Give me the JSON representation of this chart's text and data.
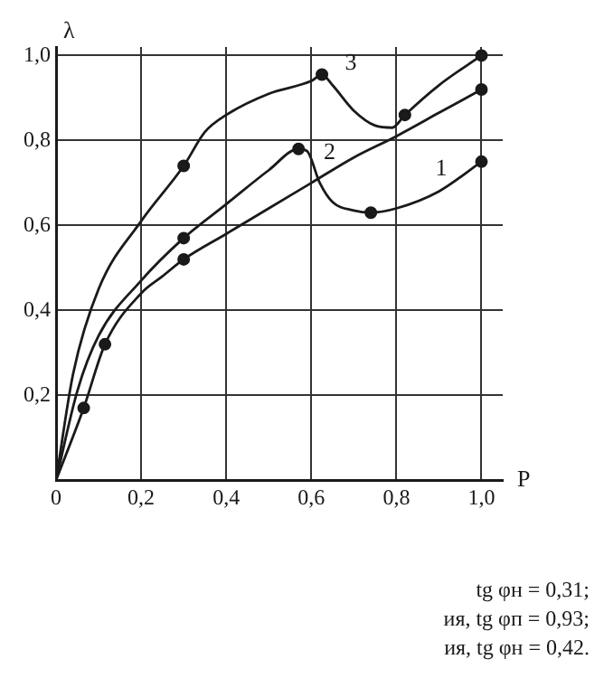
{
  "chart_data": {
    "type": "line",
    "xlabel": "P",
    "ylabel": "λ",
    "xlim": [
      0,
      1.05
    ],
    "ylim": [
      0,
      1.02
    ],
    "xticks": [
      {
        "value": 0,
        "label": "0"
      },
      {
        "value": 0.2,
        "label": "0,2"
      },
      {
        "value": 0.4,
        "label": "0,4"
      },
      {
        "value": 0.6,
        "label": "0,6"
      },
      {
        "value": 0.8,
        "label": "0,8"
      },
      {
        "value": 1.0,
        "label": "1,0"
      }
    ],
    "yticks": [
      {
        "value": 0,
        "label": null
      },
      {
        "value": 0.2,
        "label": "0,2"
      },
      {
        "value": 0.4,
        "label": "0,4"
      },
      {
        "value": 0.6,
        "label": "0,6"
      },
      {
        "value": 0.8,
        "label": "0,8"
      },
      {
        "value": 1.0,
        "label": "1,0"
      }
    ],
    "grid": true,
    "line_style": "solid",
    "series": [
      {
        "name": "1",
        "color": "#1a1a1a",
        "marker": "none",
        "x": [
          0,
          0.05,
          0.1,
          0.2,
          0.3,
          0.4,
          0.5,
          0.57,
          0.59,
          0.62,
          0.65,
          0.7,
          0.74,
          0.8,
          0.9,
          1.0
        ],
        "values": [
          0,
          0.21,
          0.34,
          0.47,
          0.57,
          0.65,
          0.73,
          0.78,
          0.775,
          0.7,
          0.655,
          0.635,
          0.63,
          0.64,
          0.68,
          0.75
        ]
      },
      {
        "name": "2",
        "color": "#1a1a1a",
        "marker": "none",
        "x": [
          0,
          0.065,
          0.115,
          0.2,
          0.25,
          0.3,
          0.4,
          0.5,
          0.6,
          0.7,
          0.8,
          0.9,
          1.0
        ],
        "values": [
          0,
          0.17,
          0.32,
          0.44,
          0.48,
          0.52,
          0.58,
          0.64,
          0.7,
          0.76,
          0.81,
          0.865,
          0.92
        ]
      },
      {
        "name": "3",
        "color": "#1a1a1a",
        "marker": "none",
        "x": [
          0,
          0.04,
          0.1,
          0.2,
          0.3,
          0.35,
          0.4,
          0.5,
          0.6,
          0.625,
          0.65,
          0.7,
          0.75,
          0.79,
          0.82,
          0.9,
          1.0
        ],
        "values": [
          0,
          0.25,
          0.45,
          0.61,
          0.74,
          0.82,
          0.86,
          0.91,
          0.94,
          0.955,
          0.93,
          0.87,
          0.835,
          0.83,
          0.86,
          0.93,
          1.0
        ]
      },
      {
        "type": "scatter",
        "color": "#1a1a1a",
        "marker": "circle",
        "x": [
          0.3,
          0.57,
          0.74,
          1.0,
          0.065,
          0.115,
          0.3,
          1.0,
          0.3,
          0.625,
          0.82,
          1.0
        ],
        "values": [
          0.57,
          0.78,
          0.63,
          0.75,
          0.17,
          0.32,
          0.52,
          0.92,
          0.74,
          0.955,
          0.86,
          1.0
        ]
      }
    ],
    "annotations": [
      "tg φн = 0,31;",
      "ия, tg φп = 0,93;",
      "ия, tg φн = 0,42."
    ]
  }
}
